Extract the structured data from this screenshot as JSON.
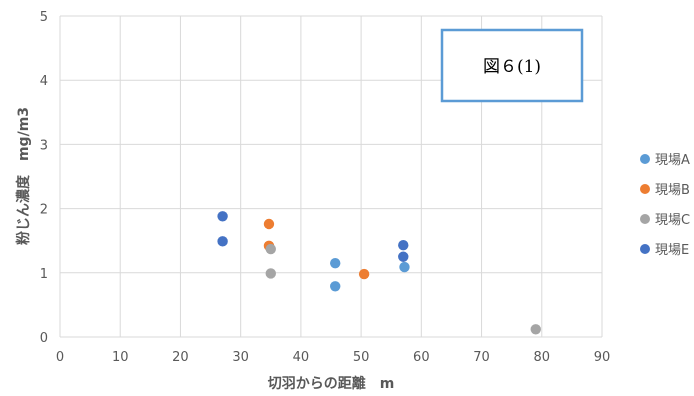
{
  "chart_data": {
    "type": "scatter",
    "title": "",
    "xlabel": "切羽からの距離　m",
    "ylabel": "粉じん濃度　mg/m3",
    "xlim": [
      0,
      90
    ],
    "ylim": [
      0,
      5
    ],
    "xticks": [
      0,
      10,
      20,
      30,
      40,
      50,
      60,
      70,
      80,
      90
    ],
    "yticks": [
      0,
      1,
      2,
      3,
      4,
      5
    ],
    "grid": true,
    "legend_position": "right",
    "annotation": "図６(1)",
    "series": [
      {
        "name": "現場A",
        "color": "#5b9bd5",
        "points": [
          [
            45.7,
            1.15
          ],
          [
            45.7,
            0.79
          ],
          [
            57.2,
            1.09
          ]
        ]
      },
      {
        "name": "現場B",
        "color": "#ed7d31",
        "points": [
          [
            34.7,
            1.76
          ],
          [
            34.7,
            1.42
          ],
          [
            50.5,
            0.98
          ]
        ]
      },
      {
        "name": "現場C",
        "color": "#a5a5a5",
        "points": [
          [
            35.0,
            1.37
          ],
          [
            35.0,
            0.99
          ],
          [
            79.0,
            0.12
          ]
        ]
      },
      {
        "name": "現場E",
        "color": "#4472c4",
        "points": [
          [
            27.0,
            1.88
          ],
          [
            27.0,
            1.49
          ],
          [
            57.0,
            1.43
          ],
          [
            57.0,
            1.25
          ]
        ]
      }
    ]
  }
}
